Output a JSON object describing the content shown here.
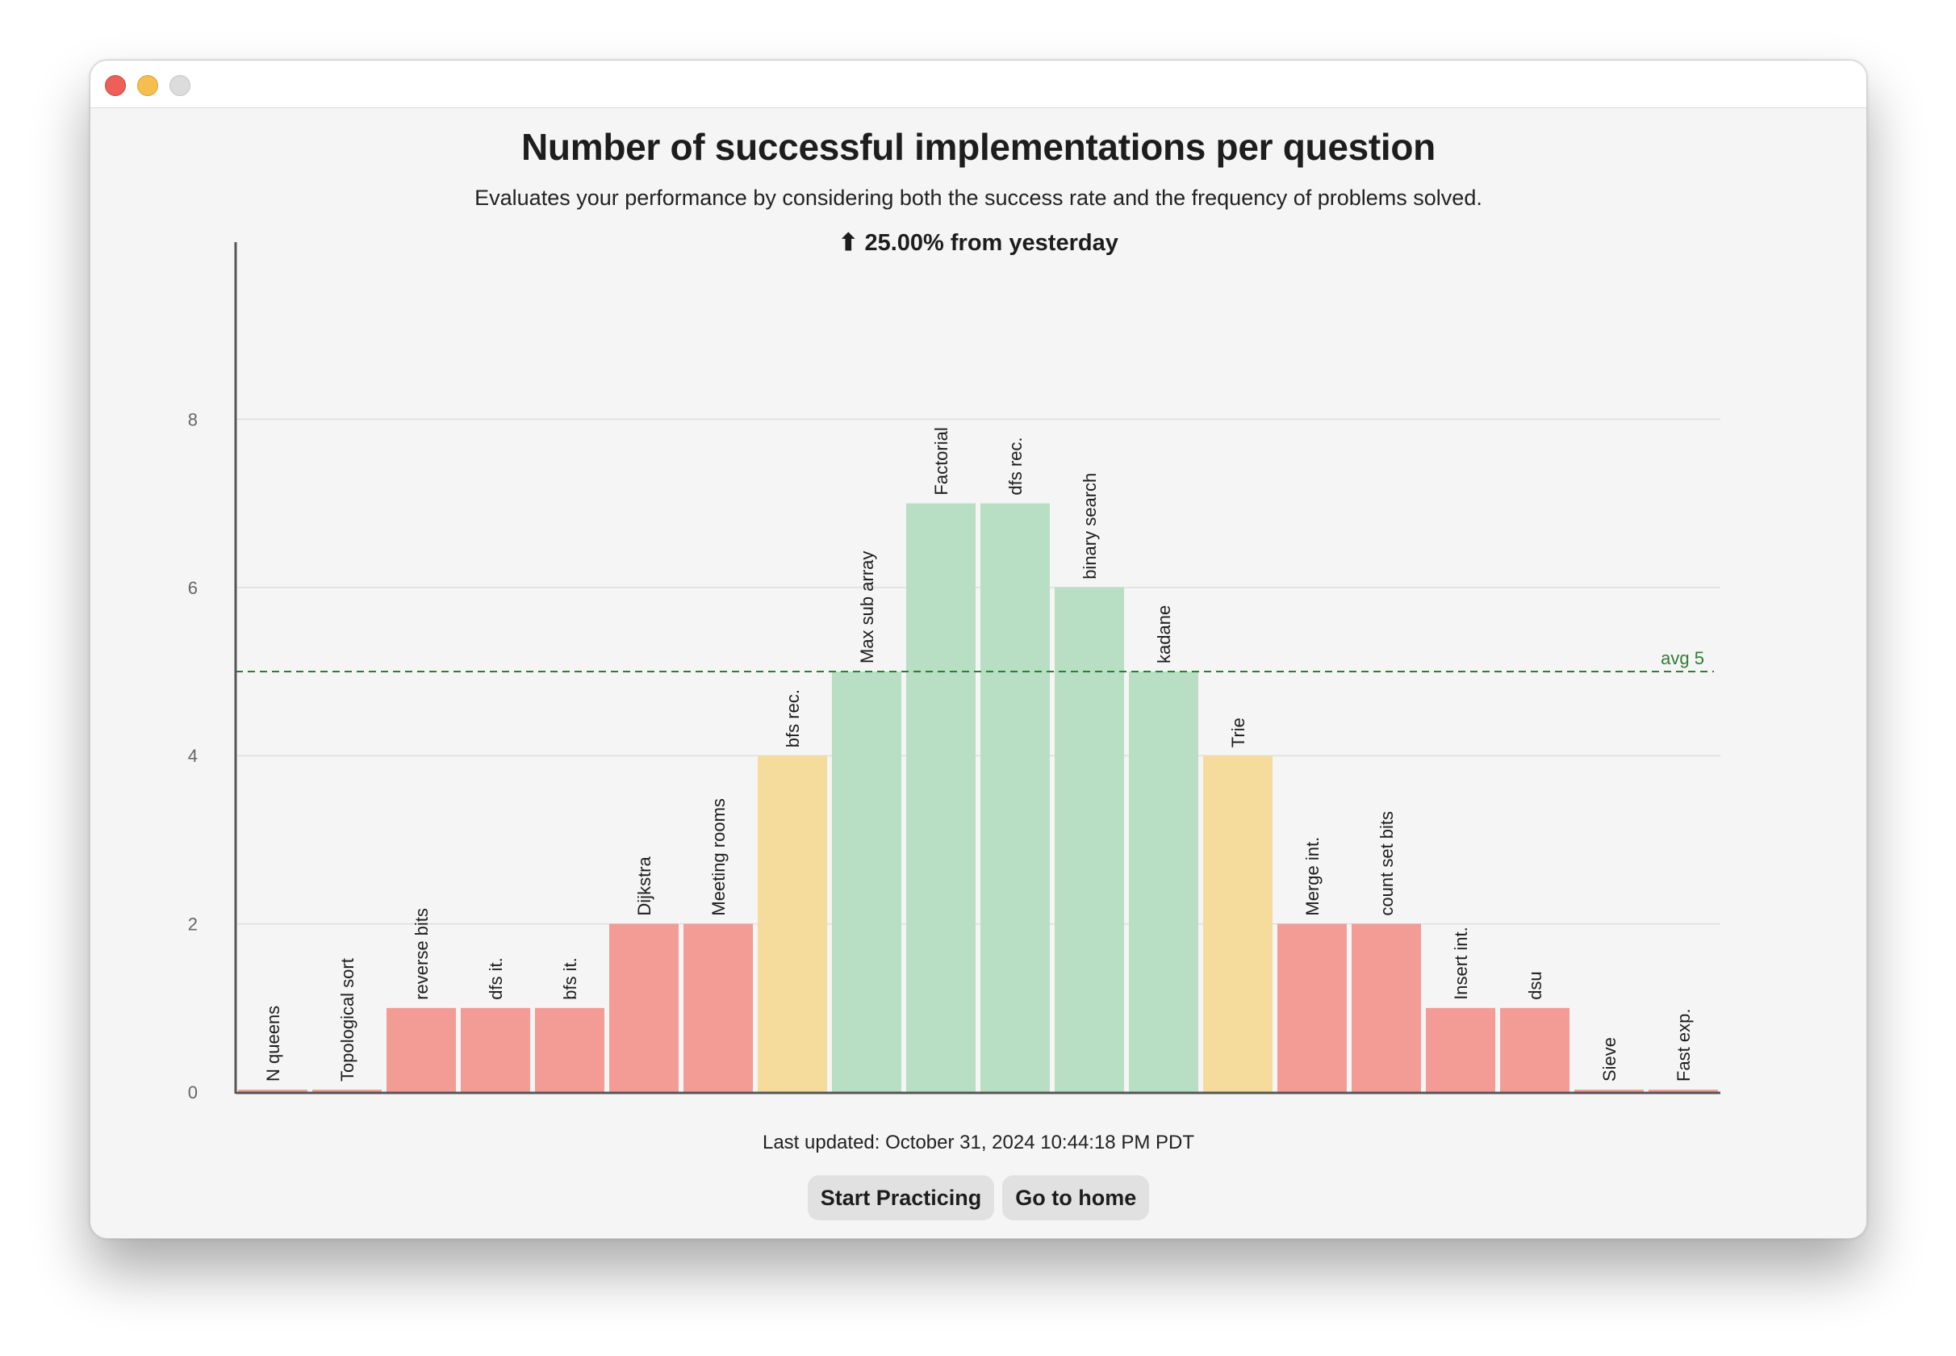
{
  "window": {
    "traffic_lights": [
      "close-button",
      "minimize-button",
      "zoom-button"
    ]
  },
  "header": {
    "trend_icon": "arrow-up-icon",
    "trend_arrow": "⬆",
    "trend_text": "25.00% from yesterday"
  },
  "footer": {
    "last_updated": "Last updated: October 31, 2024 10:44:18 PM PDT",
    "start_label": "Start Practicing",
    "home_label": "Go to home"
  },
  "colors": {
    "high": "#b8dec3",
    "mid": "#f5dc9c",
    "low": "#f39b95",
    "avg_line": "#2e7d32",
    "grid": "#dedede",
    "axis": "#555555"
  },
  "chart_data": {
    "type": "bar",
    "title": "Number of successful implementations per question",
    "subtitle": "Evaluates your performance by considering both the success rate and the frequency of problems solved.",
    "categories": [
      "N queens",
      "Topological sort",
      "reverse bits",
      "dfs it.",
      "bfs it.",
      "Dijkstra",
      "Meeting rooms",
      "bfs rec.",
      "Max sub array",
      "Factorial",
      "dfs rec.",
      "binary search",
      "kadane",
      "Trie",
      "Merge int.",
      "count set bits",
      "Insert int.",
      "dsu",
      "Sieve",
      "Fast exp."
    ],
    "values": [
      0,
      0,
      1,
      1,
      1,
      2,
      2,
      4,
      5,
      7,
      7,
      6,
      5,
      4,
      2,
      2,
      1,
      1,
      0,
      0
    ],
    "color_groups": [
      "low",
      "low",
      "low",
      "low",
      "low",
      "low",
      "low",
      "mid",
      "high",
      "high",
      "high",
      "high",
      "high",
      "mid",
      "low",
      "low",
      "low",
      "low",
      "low",
      "low"
    ],
    "yticks": [
      0,
      2,
      4,
      6,
      8
    ],
    "ylim": [
      0,
      10
    ],
    "grid": true,
    "average": {
      "value": 5,
      "label": "avg 5"
    },
    "xlabel": "",
    "ylabel": ""
  }
}
